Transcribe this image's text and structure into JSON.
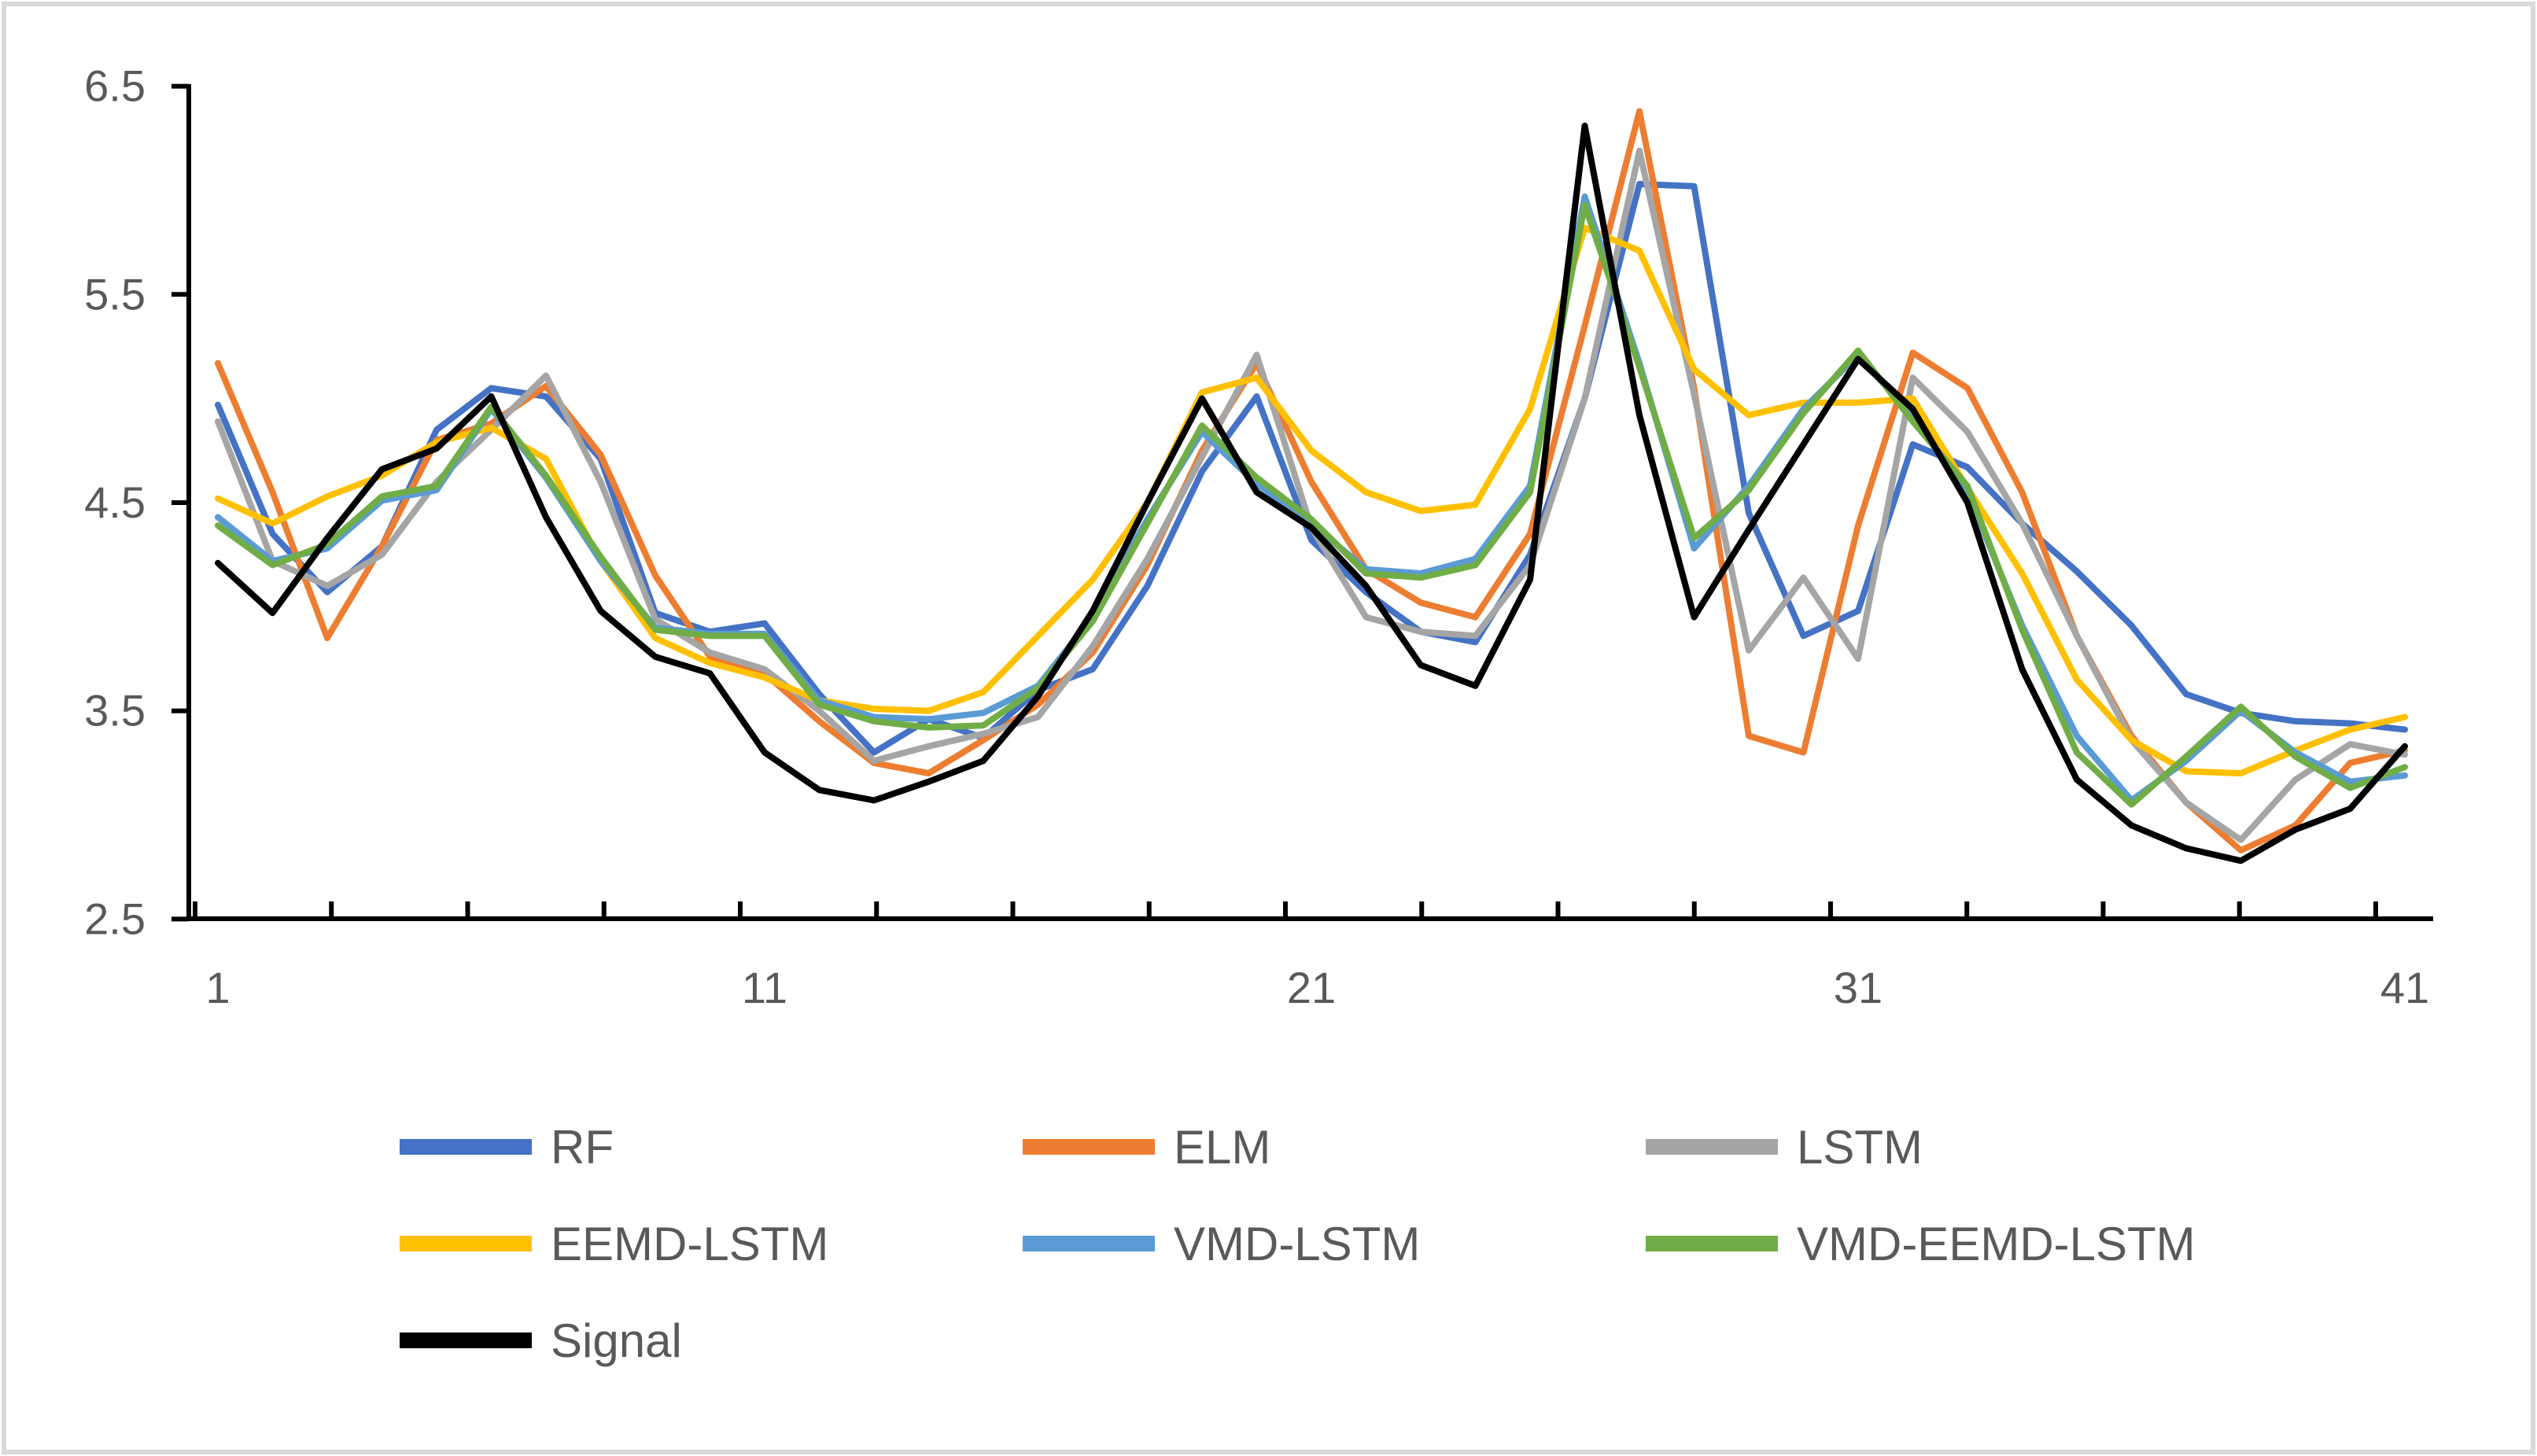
{
  "figure": {
    "background": "#ffffff",
    "border_color": "#d9d9d9",
    "axis_color": "#000000",
    "label_color": "#595959"
  },
  "chart_data": {
    "type": "line",
    "title": "",
    "xlabel": "",
    "ylabel": "",
    "x": [
      1,
      2,
      3,
      4,
      5,
      6,
      7,
      8,
      9,
      10,
      11,
      12,
      13,
      14,
      15,
      16,
      17,
      18,
      19,
      20,
      21,
      22,
      23,
      24,
      25,
      26,
      27,
      28,
      29,
      30,
      31,
      32,
      33,
      34,
      35,
      36,
      37,
      38,
      39,
      40,
      41
    ],
    "x_tick_labels": [
      "1",
      "11",
      "21",
      "31",
      "41"
    ],
    "x_tick_positions": [
      1,
      11,
      21,
      31,
      41
    ],
    "y_tick_labels": [
      "2.5",
      "3.5",
      "4.5",
      "5.5",
      "6.5"
    ],
    "ylim": [
      2.5,
      6.5
    ],
    "grid": false,
    "legend_position": "bottom",
    "series": [
      {
        "name": "RF",
        "color": "#4472C4",
        "values": [
          4.97,
          4.35,
          4.07,
          4.29,
          4.85,
          5.05,
          5.01,
          4.71,
          3.97,
          3.88,
          3.92,
          3.58,
          3.3,
          3.46,
          3.37,
          3.6,
          3.7,
          4.1,
          4.65,
          5.01,
          4.32,
          4.07,
          3.88,
          3.83,
          4.25,
          5.0,
          6.03,
          6.02,
          4.45,
          3.86,
          3.98,
          4.78,
          4.67,
          4.4,
          4.17,
          3.91,
          3.58,
          3.49,
          3.45,
          3.44,
          3.41
        ]
      },
      {
        "name": "ELM",
        "color": "#ED7D31",
        "values": [
          5.17,
          4.55,
          3.85,
          4.29,
          4.8,
          4.88,
          5.06,
          4.73,
          4.15,
          3.76,
          3.68,
          3.45,
          3.25,
          3.2,
          3.36,
          3.53,
          3.78,
          4.2,
          4.75,
          5.17,
          4.6,
          4.18,
          4.02,
          3.95,
          4.35,
          5.35,
          6.38,
          5.05,
          3.38,
          3.3,
          4.39,
          5.22,
          5.05,
          4.55,
          3.86,
          3.38,
          3.06,
          2.83,
          2.95,
          3.25,
          3.31
        ]
      },
      {
        "name": "LSTM",
        "color": "#A5A5A5",
        "values": [
          4.89,
          4.22,
          4.1,
          4.25,
          4.6,
          4.85,
          5.11,
          4.6,
          3.94,
          3.78,
          3.7,
          3.5,
          3.26,
          3.33,
          3.39,
          3.47,
          3.81,
          4.23,
          4.72,
          5.21,
          4.38,
          3.95,
          3.88,
          3.86,
          4.2,
          5.0,
          6.19,
          5.02,
          3.79,
          4.14,
          3.75,
          5.1,
          4.84,
          4.4,
          3.86,
          3.36,
          3.06,
          2.88,
          3.17,
          3.34,
          3.29
        ]
      },
      {
        "name": "EEMD-LSTM",
        "color": "#FFC000",
        "values": [
          4.52,
          4.4,
          4.53,
          4.63,
          4.79,
          4.86,
          4.71,
          4.22,
          3.85,
          3.73,
          3.66,
          3.55,
          3.51,
          3.5,
          3.59,
          3.86,
          4.13,
          4.5,
          5.03,
          5.1,
          4.75,
          4.55,
          4.46,
          4.49,
          4.95,
          5.82,
          5.71,
          5.14,
          4.92,
          4.98,
          4.98,
          5.0,
          4.57,
          4.16,
          3.65,
          3.36,
          3.21,
          3.2,
          3.31,
          3.41,
          3.47
        ]
      },
      {
        "name": "VMD-LSTM",
        "color": "#5B9BD5",
        "values": [
          4.43,
          4.22,
          4.28,
          4.51,
          4.56,
          4.95,
          4.62,
          4.22,
          3.9,
          3.87,
          3.87,
          3.55,
          3.47,
          3.46,
          3.49,
          3.62,
          3.95,
          4.42,
          4.84,
          4.59,
          4.4,
          4.18,
          4.16,
          4.23,
          4.58,
          5.97,
          5.17,
          4.28,
          4.58,
          4.95,
          5.21,
          4.91,
          4.55,
          3.91,
          3.38,
          3.07,
          3.26,
          3.5,
          3.3,
          3.16,
          3.19
        ]
      },
      {
        "name": "VMD-EEMD-LSTM",
        "color": "#70AD47",
        "values": [
          4.39,
          4.2,
          4.3,
          4.53,
          4.58,
          4.96,
          4.63,
          4.24,
          3.89,
          3.86,
          3.86,
          3.53,
          3.45,
          3.42,
          3.43,
          3.61,
          3.93,
          4.4,
          4.87,
          4.62,
          4.42,
          4.16,
          4.14,
          4.2,
          4.55,
          5.93,
          5.15,
          4.33,
          4.56,
          4.93,
          5.23,
          4.89,
          4.58,
          3.89,
          3.3,
          3.05,
          3.28,
          3.52,
          3.28,
          3.13,
          3.23
        ]
      },
      {
        "name": "Signal",
        "color": "#000000",
        "values": [
          4.21,
          3.97,
          4.33,
          4.66,
          4.76,
          5.01,
          4.43,
          3.98,
          3.76,
          3.68,
          3.3,
          3.12,
          3.07,
          3.16,
          3.26,
          3.57,
          3.98,
          4.5,
          5.0,
          4.55,
          4.38,
          4.1,
          3.72,
          3.62,
          4.13,
          6.31,
          4.92,
          3.95,
          4.37,
          4.78,
          5.19,
          4.95,
          4.5,
          3.7,
          3.17,
          2.95,
          2.84,
          2.78,
          2.93,
          3.03,
          3.33
        ]
      }
    ]
  }
}
